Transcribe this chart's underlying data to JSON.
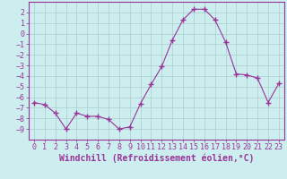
{
  "x": [
    0,
    1,
    2,
    3,
    4,
    5,
    6,
    7,
    8,
    9,
    10,
    11,
    12,
    13,
    14,
    15,
    16,
    17,
    18,
    19,
    20,
    21,
    22,
    23
  ],
  "y": [
    -6.5,
    -6.7,
    -7.5,
    -9.0,
    -7.5,
    -7.8,
    -7.8,
    -8.1,
    -9.0,
    -8.8,
    -6.6,
    -4.8,
    -3.1,
    -0.6,
    1.3,
    2.3,
    2.3,
    1.3,
    -0.8,
    -3.8,
    -3.9,
    -4.2,
    -6.5,
    -4.7
  ],
  "line_color": "#993399",
  "marker": "+",
  "marker_size": 4,
  "bg_color": "#cceeee",
  "grid_color": "#aacccc",
  "xlabel": "Windchill (Refroidissement éolien,°C)",
  "ylim": [
    -10,
    3
  ],
  "xlim": [
    -0.5,
    23.5
  ],
  "yticks": [
    2,
    1,
    0,
    -1,
    -2,
    -3,
    -4,
    -5,
    -6,
    -7,
    -8,
    -9
  ],
  "xticks": [
    0,
    1,
    2,
    3,
    4,
    5,
    6,
    7,
    8,
    9,
    10,
    11,
    12,
    13,
    14,
    15,
    16,
    17,
    18,
    19,
    20,
    21,
    22,
    23
  ],
  "font_color": "#993399",
  "tick_fontsize": 6,
  "xlabel_fontsize": 7
}
